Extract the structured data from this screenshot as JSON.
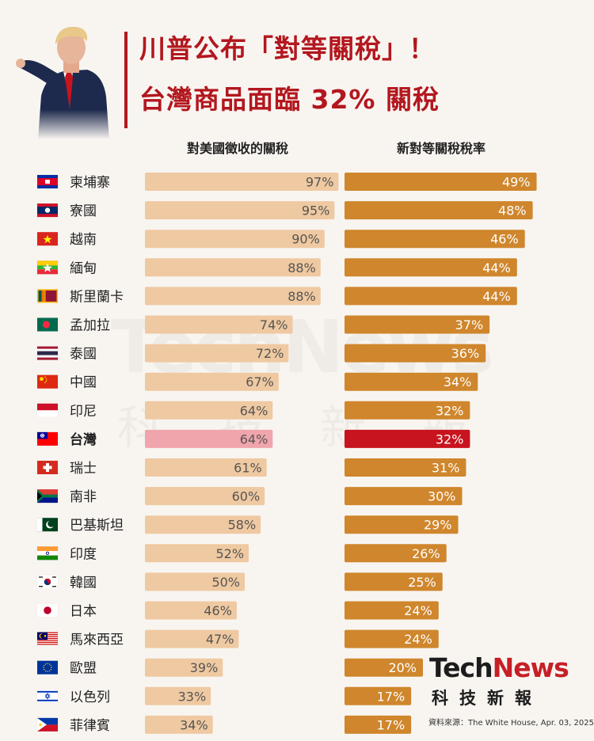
{
  "title": {
    "line1": "川普公布「對等關稅」！",
    "line2": "台灣商品面臨 32% 關稅"
  },
  "columns": {
    "left": "對美國徵收的關稅",
    "right": "新對等關稅稅率"
  },
  "logo": {
    "tech": "Tech",
    "news": "News",
    "sub": "科技新報"
  },
  "source": "資料來源：The White House, Apr. 03, 2025",
  "colors": {
    "title_red": "#b3171e",
    "left_bar": "#efc9a1",
    "right_bar": "#cf862c",
    "highlight_left": "#f0a5ac",
    "highlight_right": "#c8141e"
  },
  "highlight_country": "台灣",
  "chart_data": {
    "type": "bar",
    "categories": [
      "柬埔寨",
      "寮國",
      "越南",
      "緬甸",
      "斯里蘭卡",
      "孟加拉",
      "泰國",
      "中國",
      "印尼",
      "台灣",
      "瑞士",
      "南非",
      "巴基斯坦",
      "印度",
      "韓國",
      "日本",
      "馬來西亞",
      "歐盟",
      "以色列",
      "菲律賓"
    ],
    "flags": [
      "cambodia-flag-icon",
      "laos-flag-icon",
      "vietnam-flag-icon",
      "myanmar-flag-icon",
      "sri-lanka-flag-icon",
      "bangladesh-flag-icon",
      "thailand-flag-icon",
      "china-flag-icon",
      "indonesia-flag-icon",
      "taiwan-flag-icon",
      "switzerland-flag-icon",
      "south-africa-flag-icon",
      "pakistan-flag-icon",
      "india-flag-icon",
      "south-korea-flag-icon",
      "japan-flag-icon",
      "malaysia-flag-icon",
      "eu-flag-icon",
      "israel-flag-icon",
      "philippines-flag-icon"
    ],
    "series": [
      {
        "name": "對美國徵收的關稅",
        "values": [
          97,
          95,
          90,
          88,
          88,
          74,
          72,
          67,
          64,
          64,
          61,
          60,
          58,
          52,
          50,
          46,
          47,
          39,
          33,
          34
        ],
        "labels": [
          "97%",
          "95%",
          "90%",
          "88%",
          "88%",
          "74%",
          "72%",
          "67%",
          "64%",
          "64%",
          "61%",
          "60%",
          "58%",
          "52%",
          "50%",
          "46%",
          "47%",
          "39%",
          "33%",
          "34%"
        ]
      },
      {
        "name": "新對等關稅稅率",
        "values": [
          49,
          48,
          46,
          44,
          44,
          37,
          36,
          34,
          32,
          32,
          31,
          30,
          29,
          26,
          25,
          24,
          24,
          20,
          17,
          17
        ],
        "labels": [
          "49%",
          "48%",
          "46%",
          "44%",
          "44%",
          "37%",
          "36%",
          "34%",
          "32%",
          "32%",
          "31%",
          "30%",
          "29%",
          "26%",
          "25%",
          "24%",
          "24%",
          "20%",
          "17%",
          "17%"
        ]
      }
    ],
    "ylim": [
      0,
      100
    ],
    "grid": false,
    "legend": "top"
  }
}
